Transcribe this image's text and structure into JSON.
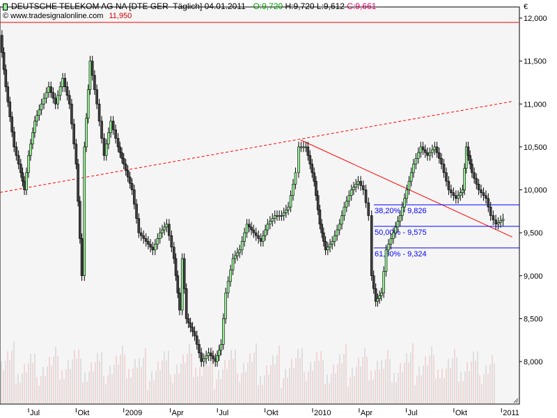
{
  "header": {
    "title": "DEUTSCHE TELEKOM AG NA [DTE GER  Täglich] 04.01.2011 - ",
    "open": "O:9,720",
    "high": "H:9,720",
    "low": "L:9,612",
    "close": "C:9,661",
    "watermark": "www.tradesignalonline.com",
    "high_marker": "11,950"
  },
  "colors": {
    "open": "#00a000",
    "close": "#e00060",
    "up_candle": "#90ee90",
    "down_candle": "#404040",
    "trend": "#ff0000",
    "fib": "#0000ff",
    "bg": "#f5f5f5"
  },
  "chart_data": {
    "type": "candlestick",
    "currency": "€",
    "ylim": [
      7500,
      12000
    ],
    "yticks": [
      "12,000",
      "11,500",
      "11,000",
      "10,500",
      "10,000",
      "9,500",
      "9,000",
      "8,500",
      "8,000"
    ],
    "ytick_values": [
      12000,
      11500,
      11000,
      10500,
      10000,
      9500,
      9000,
      8500,
      8000
    ],
    "xticks": [
      {
        "label": "Jul",
        "date": "2008-07-01"
      },
      {
        "label": "Okt",
        "date": "2008-10-01"
      },
      {
        "label": "2009",
        "date": "2009-01-01"
      },
      {
        "label": "Apr",
        "date": "2009-04-01"
      },
      {
        "label": "Jul",
        "date": "2009-07-01"
      },
      {
        "label": "Okt",
        "date": "2009-10-01"
      },
      {
        "label": "2010",
        "date": "2010-01-01"
      },
      {
        "label": "Apr",
        "date": "2010-04-01"
      },
      {
        "label": "Jul",
        "date": "2010-07-01"
      },
      {
        "label": "Okt",
        "date": "2010-10-01"
      },
      {
        "label": "2011",
        "date": "2011-01-01"
      }
    ],
    "closes": [
      [
        "2008-05-07",
        11800
      ],
      [
        "2008-05-18",
        11200
      ],
      [
        "2008-06-03",
        10500
      ],
      [
        "2008-06-16",
        10200
      ],
      [
        "2008-06-23",
        10000
      ],
      [
        "2008-07-01",
        10400
      ],
      [
        "2008-07-13",
        10800
      ],
      [
        "2008-07-26",
        11000
      ],
      [
        "2008-08-09",
        11200
      ],
      [
        "2008-08-22",
        11000
      ],
      [
        "2008-09-05",
        11300
      ],
      [
        "2008-09-18",
        11000
      ],
      [
        "2008-10-01",
        10300
      ],
      [
        "2008-10-12",
        9000
      ],
      [
        "2008-10-17",
        10500
      ],
      [
        "2008-10-28",
        11500
      ],
      [
        "2008-11-10",
        11000
      ],
      [
        "2008-11-24",
        10400
      ],
      [
        "2008-12-07",
        10800
      ],
      [
        "2008-12-21",
        10500
      ],
      [
        "2009-01-01",
        10300
      ],
      [
        "2009-01-17",
        10000
      ],
      [
        "2009-01-30",
        9500
      ],
      [
        "2009-02-13",
        9400
      ],
      [
        "2009-02-26",
        9300
      ],
      [
        "2009-03-12",
        9500
      ],
      [
        "2009-03-25",
        9600
      ],
      [
        "2009-04-08",
        9200
      ],
      [
        "2009-04-19",
        8600
      ],
      [
        "2009-04-24",
        9200
      ],
      [
        "2009-05-02",
        8500
      ],
      [
        "2009-05-18",
        8300
      ],
      [
        "2009-05-31",
        8000
      ],
      [
        "2009-06-14",
        8100
      ],
      [
        "2009-06-27",
        8000
      ],
      [
        "2009-07-08",
        8200
      ],
      [
        "2009-07-17",
        8800
      ],
      [
        "2009-07-31",
        9200
      ],
      [
        "2009-08-13",
        9300
      ],
      [
        "2009-08-27",
        9600
      ],
      [
        "2009-09-09",
        9500
      ],
      [
        "2009-09-23",
        9400
      ],
      [
        "2009-10-06",
        9600
      ],
      [
        "2009-10-20",
        9700
      ],
      [
        "2009-11-02",
        9700
      ],
      [
        "2009-11-15",
        9800
      ],
      [
        "2009-11-29",
        10200
      ],
      [
        "2009-12-05",
        10500
      ],
      [
        "2009-12-19",
        10500
      ],
      [
        "2010-01-04",
        10100
      ],
      [
        "2010-01-15",
        9600
      ],
      [
        "2010-01-26",
        9300
      ],
      [
        "2010-02-08",
        9400
      ],
      [
        "2010-02-22",
        9600
      ],
      [
        "2010-03-03",
        9800
      ],
      [
        "2010-03-17",
        10000
      ],
      [
        "2010-03-30",
        10100
      ],
      [
        "2010-04-09",
        10000
      ],
      [
        "2010-04-19",
        9700
      ],
      [
        "2010-04-25",
        9000
      ],
      [
        "2010-05-03",
        8700
      ],
      [
        "2010-05-14",
        8800
      ],
      [
        "2010-05-23",
        9300
      ],
      [
        "2010-06-06",
        9500
      ],
      [
        "2010-06-19",
        9700
      ],
      [
        "2010-07-02",
        10000
      ],
      [
        "2010-07-15",
        10300
      ],
      [
        "2010-07-29",
        10500
      ],
      [
        "2010-08-11",
        10400
      ],
      [
        "2010-08-25",
        10500
      ],
      [
        "2010-09-07",
        10300
      ],
      [
        "2010-09-21",
        10000
      ],
      [
        "2010-10-05",
        9900
      ],
      [
        "2010-10-18",
        10000
      ],
      [
        "2010-10-25",
        10500
      ],
      [
        "2010-11-05",
        10200
      ],
      [
        "2010-11-18",
        10000
      ],
      [
        "2010-12-02",
        9900
      ],
      [
        "2010-12-11",
        9700
      ],
      [
        "2010-12-21",
        9600
      ],
      [
        "2011-01-04",
        9661
      ]
    ],
    "lines": {
      "resistance": 11950,
      "dashed_trend": {
        "from": [
          "2008-05-07",
          9970
        ],
        "to": [
          "2011-01-22",
          11030
        ]
      },
      "down_trend": {
        "from": [
          "2009-12-09",
          10580
        ],
        "to": [
          "2011-01-22",
          9450
        ]
      }
    },
    "fibonacci": [
      {
        "label": "38,20% - 9,826",
        "value": 9826
      },
      {
        "label": "50,00% - 9,575",
        "value": 9575
      },
      {
        "label": "61,80% - 9,324",
        "value": 9324
      }
    ]
  }
}
